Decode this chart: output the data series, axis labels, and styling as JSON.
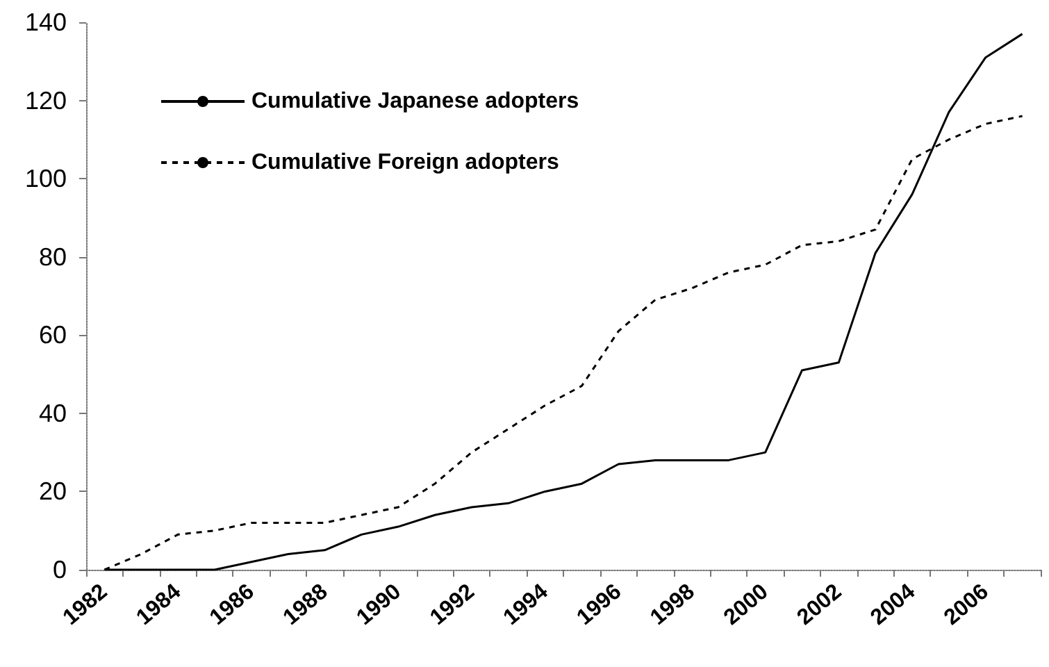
{
  "chart_data": {
    "type": "line",
    "categories": [
      "1982",
      null,
      "1984",
      null,
      "1986",
      null,
      "1988",
      null,
      "1990",
      null,
      "1992",
      null,
      "1994",
      null,
      "1996",
      null,
      "1998",
      null,
      "2000",
      null,
      "2002",
      null,
      "2004",
      null,
      "2006",
      null
    ],
    "series": [
      {
        "name": "Cumulative Japanese adopters",
        "color": "#000000",
        "line_style": "solid",
        "values": [
          0,
          0,
          0,
          0,
          2,
          4,
          5,
          9,
          11,
          14,
          16,
          17,
          20,
          22,
          27,
          28,
          28,
          28,
          30,
          51,
          53,
          81,
          96,
          117,
          131,
          137
        ]
      },
      {
        "name": "Cumulative Foreign adopters",
        "color": "#000000",
        "line_style": "dashed",
        "values": [
          0,
          4,
          9,
          10,
          12,
          12,
          12,
          14,
          16,
          22,
          30,
          36,
          42,
          47,
          61,
          69,
          72,
          76,
          78,
          83,
          84,
          87,
          105,
          110,
          114,
          116
        ]
      }
    ],
    "ylim": [
      0,
      140
    ],
    "yticks": [
      0,
      20,
      40,
      60,
      80,
      100,
      120,
      140
    ],
    "grid": false,
    "legend": "top left",
    "marker": "none"
  }
}
